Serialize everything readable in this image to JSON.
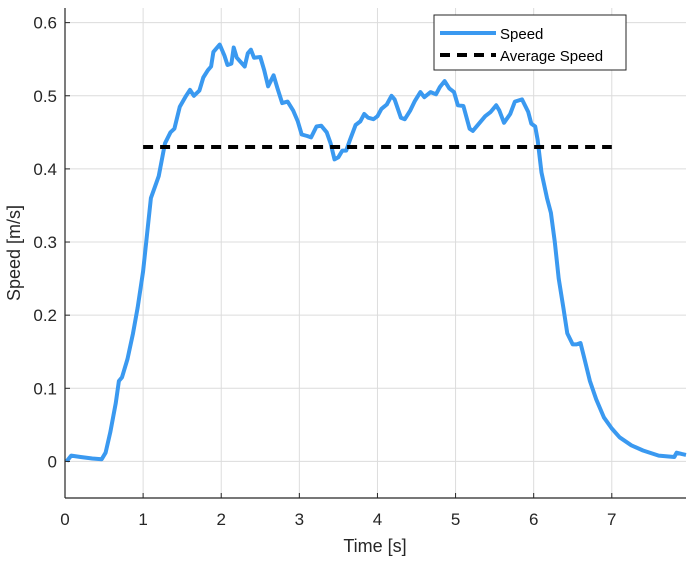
{
  "chart_data": {
    "type": "line",
    "title": "",
    "xlabel": "Time [s]",
    "ylabel": "Speed [m/s]",
    "xlim": [
      0,
      7.95
    ],
    "ylim": [
      -0.05,
      0.62
    ],
    "xticks": [
      0,
      1,
      2,
      3,
      4,
      5,
      6,
      7
    ],
    "yticks": [
      0,
      0.1,
      0.2,
      0.3,
      0.4,
      0.5,
      0.6
    ],
    "xtick_labels": [
      "0",
      "1",
      "2",
      "3",
      "4",
      "5",
      "6",
      "7"
    ],
    "ytick_labels": [
      "0",
      "0.1",
      "0.2",
      "0.3",
      "0.4",
      "0.5",
      "0.6"
    ],
    "grid": true,
    "legend_position": "top-right",
    "series": [
      {
        "name": "Speed",
        "color": "#3a99f0",
        "style": "solid",
        "x": [
          0.02,
          0.08,
          0.2,
          0.35,
          0.47,
          0.52,
          0.58,
          0.65,
          0.69,
          0.73,
          0.8,
          0.87,
          0.93,
          1.0,
          1.05,
          1.1,
          1.15,
          1.2,
          1.28,
          1.35,
          1.4,
          1.47,
          1.55,
          1.6,
          1.65,
          1.72,
          1.77,
          1.83,
          1.87,
          1.9,
          1.98,
          2.04,
          2.08,
          2.13,
          2.16,
          2.2,
          2.3,
          2.34,
          2.38,
          2.42,
          2.5,
          2.55,
          2.6,
          2.67,
          2.72,
          2.78,
          2.85,
          2.92,
          2.98,
          3.03,
          3.1,
          3.15,
          3.22,
          3.28,
          3.35,
          3.4,
          3.45,
          3.5,
          3.55,
          3.6,
          3.65,
          3.72,
          3.78,
          3.83,
          3.88,
          3.95,
          4.0,
          4.05,
          4.12,
          4.18,
          4.22,
          4.3,
          4.35,
          4.42,
          4.48,
          4.55,
          4.6,
          4.68,
          4.75,
          4.8,
          4.86,
          4.92,
          4.98,
          5.03,
          5.1,
          5.18,
          5.22,
          5.3,
          5.38,
          5.45,
          5.52,
          5.56,
          5.62,
          5.7,
          5.76,
          5.85,
          5.93,
          5.97,
          6.02,
          6.05,
          6.1,
          6.17,
          6.22,
          6.27,
          6.32,
          6.38,
          6.43,
          6.5,
          6.55,
          6.6,
          6.65,
          6.72,
          6.8,
          6.9,
          7.0,
          7.1,
          7.25,
          7.4,
          7.6,
          7.8,
          7.83,
          7.9,
          7.95
        ],
        "y": [
          0.0,
          0.008,
          0.006,
          0.004,
          0.003,
          0.012,
          0.04,
          0.08,
          0.11,
          0.115,
          0.14,
          0.175,
          0.21,
          0.26,
          0.31,
          0.36,
          0.375,
          0.39,
          0.435,
          0.45,
          0.455,
          0.485,
          0.5,
          0.508,
          0.5,
          0.507,
          0.525,
          0.535,
          0.54,
          0.56,
          0.57,
          0.555,
          0.542,
          0.544,
          0.566,
          0.552,
          0.54,
          0.558,
          0.563,
          0.552,
          0.553,
          0.535,
          0.513,
          0.528,
          0.51,
          0.49,
          0.492,
          0.48,
          0.465,
          0.447,
          0.445,
          0.443,
          0.458,
          0.459,
          0.45,
          0.435,
          0.413,
          0.416,
          0.425,
          0.425,
          0.44,
          0.46,
          0.465,
          0.475,
          0.47,
          0.468,
          0.472,
          0.482,
          0.488,
          0.5,
          0.495,
          0.47,
          0.468,
          0.48,
          0.493,
          0.505,
          0.498,
          0.505,
          0.502,
          0.512,
          0.52,
          0.51,
          0.505,
          0.487,
          0.486,
          0.455,
          0.452,
          0.462,
          0.472,
          0.478,
          0.487,
          0.48,
          0.463,
          0.475,
          0.492,
          0.495,
          0.478,
          0.462,
          0.458,
          0.44,
          0.395,
          0.36,
          0.34,
          0.3,
          0.25,
          0.21,
          0.175,
          0.16,
          0.16,
          0.162,
          0.14,
          0.11,
          0.085,
          0.06,
          0.045,
          0.033,
          0.022,
          0.015,
          0.008,
          0.006,
          0.012,
          0.01,
          0.009
        ]
      },
      {
        "name": "Average Speed",
        "color": "#000000",
        "style": "dashed",
        "x": [
          1,
          7
        ],
        "y": [
          0.43,
          0.43
        ]
      }
    ]
  }
}
